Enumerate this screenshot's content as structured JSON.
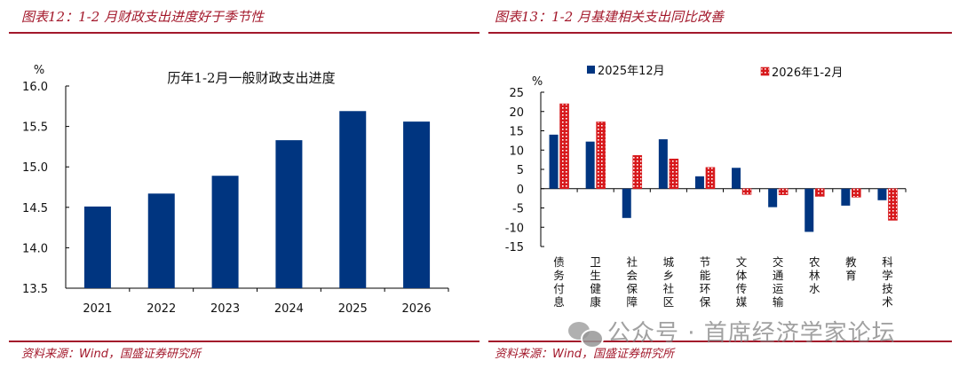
{
  "left_panel": {
    "figure_title": "图表12：1-2 月财政支出进度好于季节性",
    "source_prefix": "资料来源：",
    "source_wind": "Wind",
    "source_suffix": "，国盛证券研究所"
  },
  "right_panel": {
    "figure_title": "图表13：1-2 月基建相关支出同比改善",
    "source_prefix": "资料来源：",
    "source_wind": "Wind",
    "source_suffix": "，国盛证券研究所"
  },
  "watermark": {
    "text": "公众号 · 首席经济学家论坛",
    "icon": "wechat-icon"
  },
  "colors": {
    "accent": "#a3182b",
    "bar_blue": "#003580",
    "bar_red": "#d7191c"
  },
  "chart_data": [
    {
      "type": "bar",
      "title": "历年1-2月一般财政支出进度",
      "ylabel": "%",
      "xlabel": "",
      "categories": [
        "2021",
        "2022",
        "2023",
        "2024",
        "2025",
        "2026"
      ],
      "values": [
        14.51,
        14.67,
        14.89,
        15.33,
        15.69,
        15.56
      ],
      "ylim": [
        13.5,
        16.0
      ],
      "yticks": [
        "16.0",
        "15.5",
        "15.0",
        "14.5",
        "14.0",
        "13.5"
      ],
      "ytick_values": [
        16.0,
        15.5,
        15.0,
        14.5,
        14.0,
        13.5
      ],
      "grid": false,
      "legend": "none"
    },
    {
      "type": "bar",
      "title": "",
      "ylabel": "%",
      "xlabel": "",
      "categories": [
        "债务付息",
        "卫生健康",
        "社会保障",
        "城乡社区",
        "节能环保",
        "文体传媒",
        "交通运输",
        "农林水",
        "教育",
        "科学技术"
      ],
      "series": [
        {
          "name": "2025年12月",
          "values": [
            14.0,
            12.2,
            -7.6,
            12.8,
            3.2,
            5.4,
            -4.8,
            -11.2,
            -4.4,
            -3.0
          ]
        },
        {
          "name": "2026年1-2月",
          "values": [
            22.0,
            17.3,
            8.6,
            7.7,
            5.5,
            -1.5,
            -1.6,
            -2.0,
            -2.2,
            -8.2
          ]
        }
      ],
      "ylim": [
        -15,
        25
      ],
      "yticks": [
        "25",
        "20",
        "15",
        "10",
        "5",
        "0",
        "-5",
        "-10",
        "-15"
      ],
      "ytick_values": [
        25,
        20,
        15,
        10,
        5,
        0,
        -5,
        -10,
        -15
      ],
      "grid": false,
      "legend": "top"
    }
  ]
}
